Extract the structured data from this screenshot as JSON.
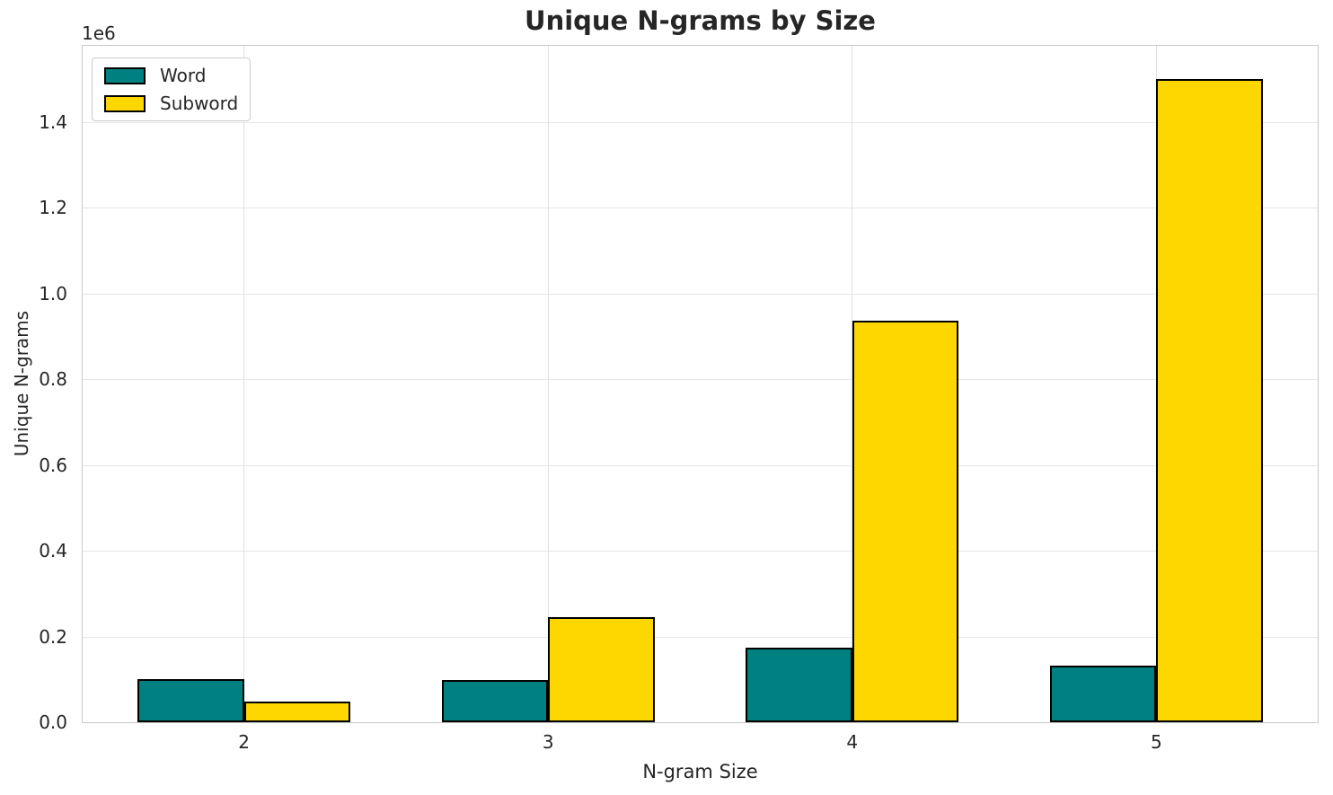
{
  "chart_data": {
    "type": "bar",
    "title": "Unique N-grams by Size",
    "xlabel": "N-gram Size",
    "ylabel": "Unique N-grams",
    "y_offset_label": "1e6",
    "categories": [
      "2",
      "3",
      "4",
      "5"
    ],
    "series": [
      {
        "name": "Word",
        "color": "#008080",
        "values": [
          101000,
          99000,
          174000,
          132000
        ]
      },
      {
        "name": "Subword",
        "color": "#FFD700",
        "values": [
          48000,
          246000,
          936000,
          1500000
        ]
      }
    ],
    "bar_edge_color": "#000000",
    "ylim": [
      0,
      1578000
    ],
    "yticks": [
      {
        "value": 0,
        "label": "0.0"
      },
      {
        "value": 200000,
        "label": "0.2"
      },
      {
        "value": 400000,
        "label": "0.4"
      },
      {
        "value": 600000,
        "label": "0.6"
      },
      {
        "value": 800000,
        "label": "0.8"
      },
      {
        "value": 1000000,
        "label": "1.0"
      },
      {
        "value": 1200000,
        "label": "1.2"
      },
      {
        "value": 1400000,
        "label": "1.4"
      }
    ],
    "grid": true,
    "legend": {
      "position": "upper left"
    },
    "colors": {
      "grid": "#e7e7e7",
      "spine": "#c9c9c9",
      "text": "#262626",
      "background": "#ffffff"
    }
  }
}
